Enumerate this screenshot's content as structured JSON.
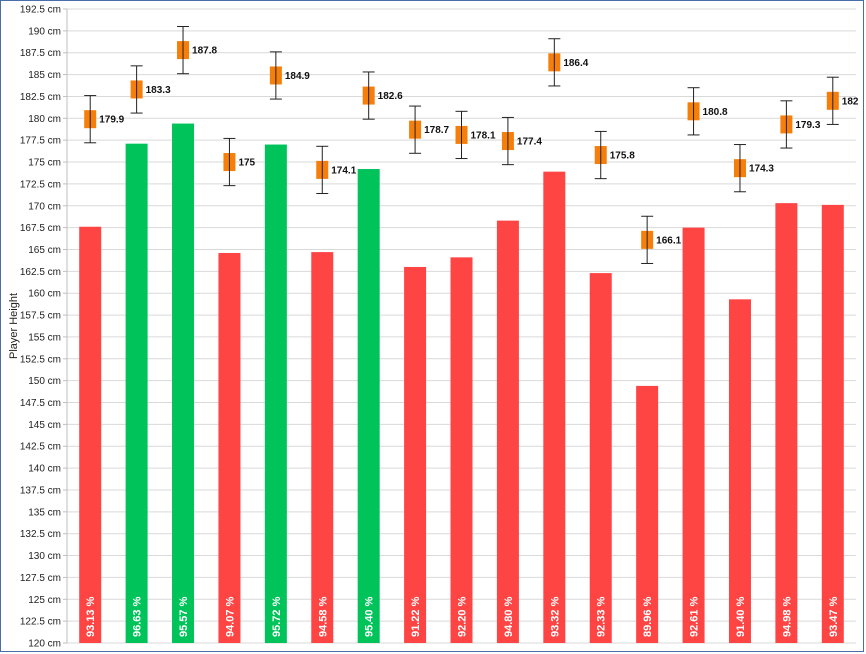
{
  "chart_data": {
    "type": "bar",
    "ylabel": "Player Height",
    "ylim": [
      120,
      192.5
    ],
    "yticks": [
      120,
      122.5,
      125,
      127.5,
      130,
      132.5,
      135,
      137.5,
      140,
      142.5,
      145,
      147.5,
      150,
      152.5,
      155,
      157.5,
      160,
      162.5,
      165,
      167.5,
      170,
      172.5,
      175,
      177.5,
      180,
      182.5,
      185,
      187.5,
      190,
      192.5
    ],
    "ytick_suffix": " cm",
    "grid": true,
    "colors": {
      "above": "#00c35a",
      "below": "#ff4444",
      "marker": "#f57f0a",
      "errorbar": "#222222"
    },
    "series": [
      {
        "kind": "bar",
        "values": [
          167.6,
          177.1,
          179.4,
          164.6,
          177.0,
          164.7,
          174.2,
          163.0,
          164.1,
          168.3,
          173.9,
          162.3,
          149.4,
          167.5,
          159.3,
          170.3,
          170.1
        ],
        "percent_labels": [
          "93.13 %",
          "96.63 %",
          "95.57 %",
          "94.07 %",
          "95.72 %",
          "94.58 %",
          "95.40 %",
          "91.22 %",
          "92.20 %",
          "94.80 %",
          "93.32 %",
          "92.33 %",
          "89.96 %",
          "92.61 %",
          "91.40 %",
          "94.98 %",
          "93.47 %"
        ],
        "color_class": [
          "below",
          "above",
          "above",
          "below",
          "above",
          "below",
          "above",
          "below",
          "below",
          "below",
          "below",
          "below",
          "below",
          "below",
          "below",
          "below",
          "below"
        ]
      },
      {
        "kind": "marker",
        "values": [
          179.9,
          183.3,
          187.8,
          175,
          184.9,
          174.1,
          182.6,
          178.7,
          178.1,
          177.4,
          186.4,
          175.8,
          166.1,
          180.8,
          174.3,
          179.3,
          182
        ],
        "labels": [
          "179.9",
          "183.3",
          "187.8",
          "175",
          "184.9",
          "174.1",
          "182.6",
          "178.7",
          "178.1",
          "177.4",
          "186.4",
          "175.8",
          "166.1",
          "180.8",
          "174.3",
          "179.3",
          "182"
        ],
        "error": 2.7
      }
    ]
  }
}
